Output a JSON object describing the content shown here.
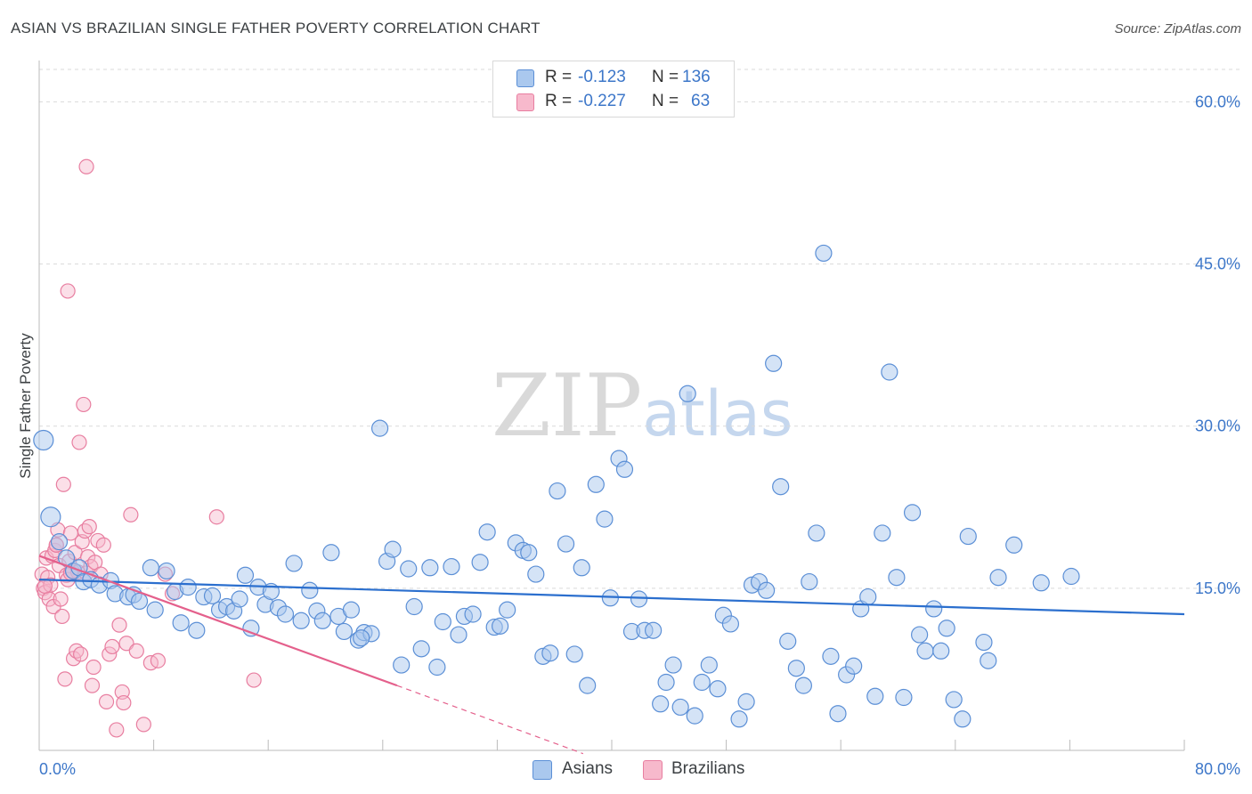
{
  "header": {
    "title": "ASIAN VS BRAZILIAN SINGLE FATHER POVERTY CORRELATION CHART",
    "source": "Source: ZipAtlas.com"
  },
  "watermark": {
    "zip": "ZIP",
    "atlas": "atlas"
  },
  "legend": {
    "asians": {
      "r_label": "R =",
      "r_value": "-0.123",
      "n_label": "N =",
      "n_value": "136"
    },
    "brazilians": {
      "r_label": "R =",
      "r_value": "-0.227",
      "n_label": "N =",
      "n_value": "63"
    }
  },
  "bottom_legend": {
    "asians": "Asians",
    "brazilians": "Brazilians"
  },
  "colors": {
    "asian_fill": "#aac8ee",
    "asian_stroke": "#5b8fd6",
    "asian_line": "#2b6fce",
    "brazil_fill": "#f7b9cc",
    "brazil_stroke": "#e87ea0",
    "brazil_line": "#e4608c",
    "grid": "#d9d9d9",
    "axis_text": "#3d77c9"
  },
  "chart_data": {
    "type": "scatter",
    "title": "ASIAN VS BRAZILIAN SINGLE FATHER POVERTY CORRELATION CHART",
    "xlabel": "",
    "ylabel": "Single Father Poverty",
    "xlim": [
      0,
      80
    ],
    "ylim": [
      0,
      63
    ],
    "x_tick_labels": [
      "0.0%",
      "80.0%"
    ],
    "y_ticks": [
      15,
      30,
      45,
      60
    ],
    "y_tick_labels": [
      "15.0%",
      "30.0%",
      "45.0%",
      "60.0%"
    ],
    "grid": true,
    "legend_position": "top-center",
    "series": [
      {
        "name": "Asians",
        "trend": {
          "x": [
            0,
            80
          ],
          "y": [
            15.8,
            12.6
          ]
        },
        "points": [
          [
            0.3,
            28.7
          ],
          [
            0.8,
            21.6
          ],
          [
            1.4,
            19.3
          ],
          [
            1.9,
            17.8
          ],
          [
            2.4,
            16.6
          ],
          [
            2.8,
            16.9
          ],
          [
            3.1,
            15.6
          ],
          [
            3.6,
            15.8
          ],
          [
            4.2,
            15.3
          ],
          [
            5.0,
            15.7
          ],
          [
            5.3,
            14.5
          ],
          [
            6.2,
            14.2
          ],
          [
            6.6,
            14.4
          ],
          [
            7.0,
            13.8
          ],
          [
            7.8,
            16.9
          ],
          [
            8.1,
            13.0
          ],
          [
            8.9,
            16.6
          ],
          [
            9.5,
            14.7
          ],
          [
            9.9,
            11.8
          ],
          [
            10.4,
            15.1
          ],
          [
            11.0,
            11.1
          ],
          [
            11.5,
            14.2
          ],
          [
            12.1,
            14.3
          ],
          [
            12.6,
            13.0
          ],
          [
            13.1,
            13.3
          ],
          [
            13.6,
            12.9
          ],
          [
            14.0,
            14.0
          ],
          [
            14.4,
            16.2
          ],
          [
            14.8,
            11.3
          ],
          [
            15.3,
            15.1
          ],
          [
            15.8,
            13.5
          ],
          [
            16.2,
            14.7
          ],
          [
            16.7,
            13.2
          ],
          [
            17.2,
            12.6
          ],
          [
            17.8,
            17.3
          ],
          [
            18.3,
            12.0
          ],
          [
            18.9,
            14.8
          ],
          [
            19.4,
            12.9
          ],
          [
            19.8,
            12.0
          ],
          [
            20.4,
            18.3
          ],
          [
            20.9,
            12.4
          ],
          [
            21.3,
            11.0
          ],
          [
            21.8,
            13.0
          ],
          [
            22.3,
            10.2
          ],
          [
            22.7,
            10.9
          ],
          [
            23.2,
            10.8
          ],
          [
            23.8,
            29.8
          ],
          [
            24.3,
            17.5
          ],
          [
            24.7,
            18.6
          ],
          [
            25.3,
            7.9
          ],
          [
            25.8,
            16.8
          ],
          [
            26.2,
            13.3
          ],
          [
            26.7,
            9.4
          ],
          [
            27.3,
            16.9
          ],
          [
            27.8,
            7.7
          ],
          [
            28.2,
            11.9
          ],
          [
            28.8,
            17.0
          ],
          [
            29.3,
            10.7
          ],
          [
            29.7,
            12.4
          ],
          [
            30.3,
            12.6
          ],
          [
            30.8,
            17.4
          ],
          [
            31.3,
            20.2
          ],
          [
            31.8,
            11.4
          ],
          [
            32.2,
            11.5
          ],
          [
            32.7,
            13.0
          ],
          [
            33.3,
            19.2
          ],
          [
            33.8,
            18.5
          ],
          [
            34.2,
            18.3
          ],
          [
            34.7,
            16.3
          ],
          [
            35.2,
            8.7
          ],
          [
            35.7,
            9.0
          ],
          [
            36.2,
            24.0
          ],
          [
            36.8,
            19.1
          ],
          [
            37.4,
            8.9
          ],
          [
            37.9,
            16.9
          ],
          [
            38.3,
            6.0
          ],
          [
            38.9,
            24.6
          ],
          [
            39.5,
            21.4
          ],
          [
            39.9,
            14.1
          ],
          [
            40.5,
            27.0
          ],
          [
            40.9,
            26.0
          ],
          [
            41.4,
            11.0
          ],
          [
            41.9,
            14.0
          ],
          [
            42.3,
            11.1
          ],
          [
            42.9,
            11.1
          ],
          [
            43.4,
            4.3
          ],
          [
            43.8,
            6.3
          ],
          [
            44.3,
            7.9
          ],
          [
            44.8,
            4.0
          ],
          [
            45.3,
            33.0
          ],
          [
            45.8,
            3.2
          ],
          [
            46.3,
            6.3
          ],
          [
            46.8,
            7.9
          ],
          [
            47.4,
            5.7
          ],
          [
            47.8,
            12.5
          ],
          [
            48.3,
            11.7
          ],
          [
            48.9,
            2.9
          ],
          [
            49.4,
            4.5
          ],
          [
            49.8,
            15.3
          ],
          [
            50.3,
            15.6
          ],
          [
            50.8,
            14.8
          ],
          [
            51.3,
            35.8
          ],
          [
            51.8,
            24.4
          ],
          [
            52.3,
            10.1
          ],
          [
            52.9,
            7.6
          ],
          [
            53.4,
            6.0
          ],
          [
            53.8,
            15.6
          ],
          [
            54.3,
            20.1
          ],
          [
            54.8,
            46.0
          ],
          [
            55.3,
            8.7
          ],
          [
            55.8,
            3.4
          ],
          [
            56.4,
            7.0
          ],
          [
            56.9,
            7.8
          ],
          [
            57.4,
            13.1
          ],
          [
            57.9,
            14.2
          ],
          [
            58.4,
            5.0
          ],
          [
            58.9,
            20.1
          ],
          [
            59.4,
            35.0
          ],
          [
            59.9,
            16.0
          ],
          [
            60.4,
            4.9
          ],
          [
            61.0,
            22.0
          ],
          [
            61.5,
            10.7
          ],
          [
            61.9,
            9.2
          ],
          [
            62.5,
            13.1
          ],
          [
            63.0,
            9.2
          ],
          [
            63.4,
            11.3
          ],
          [
            63.9,
            4.7
          ],
          [
            64.5,
            2.9
          ],
          [
            64.9,
            19.8
          ],
          [
            66.0,
            10.0
          ],
          [
            66.3,
            8.3
          ],
          [
            67.0,
            16.0
          ],
          [
            68.1,
            19.0
          ],
          [
            70.0,
            15.5
          ],
          [
            72.1,
            16.1
          ],
          [
            22.5,
            10.4
          ]
        ]
      },
      {
        "name": "Brazilians",
        "trend": {
          "x": [
            0,
            25
          ],
          "y": [
            18.0,
            6.0
          ]
        },
        "trend_dashed": {
          "x": [
            25,
            38
          ],
          "y": [
            6.0,
            -0.3
          ]
        },
        "points": [
          [
            0.2,
            16.3
          ],
          [
            0.3,
            15.0
          ],
          [
            0.4,
            14.6
          ],
          [
            0.5,
            17.8
          ],
          [
            0.6,
            16.0
          ],
          [
            0.7,
            14.0
          ],
          [
            0.8,
            15.3
          ],
          [
            0.9,
            18.0
          ],
          [
            1.0,
            13.3
          ],
          [
            1.1,
            18.5
          ],
          [
            1.2,
            19.0
          ],
          [
            1.3,
            20.4
          ],
          [
            1.4,
            17.1
          ],
          [
            1.5,
            14.0
          ],
          [
            1.6,
            12.4
          ],
          [
            1.7,
            24.6
          ],
          [
            1.8,
            6.6
          ],
          [
            1.9,
            16.2
          ],
          [
            2.0,
            15.8
          ],
          [
            2.1,
            17.5
          ],
          [
            2.2,
            20.1
          ],
          [
            2.3,
            16.6
          ],
          [
            2.4,
            8.5
          ],
          [
            2.5,
            18.3
          ],
          [
            2.6,
            9.2
          ],
          [
            2.7,
            16.5
          ],
          [
            2.8,
            28.5
          ],
          [
            2.9,
            8.9
          ],
          [
            3.0,
            19.3
          ],
          [
            3.1,
            32.0
          ],
          [
            3.2,
            20.3
          ],
          [
            3.3,
            16.4
          ],
          [
            3.4,
            17.9
          ],
          [
            3.5,
            20.7
          ],
          [
            3.6,
            17.0
          ],
          [
            3.7,
            6.0
          ],
          [
            3.8,
            7.7
          ],
          [
            3.9,
            17.4
          ],
          [
            4.1,
            19.4
          ],
          [
            4.3,
            16.3
          ],
          [
            4.5,
            19.0
          ],
          [
            4.7,
            4.5
          ],
          [
            4.9,
            8.9
          ],
          [
            5.1,
            9.6
          ],
          [
            5.4,
            1.9
          ],
          [
            5.6,
            11.6
          ],
          [
            5.8,
            5.4
          ],
          [
            5.9,
            4.4
          ],
          [
            6.1,
            9.9
          ],
          [
            6.4,
            21.8
          ],
          [
            6.8,
            9.2
          ],
          [
            7.3,
            2.4
          ],
          [
            7.8,
            8.1
          ],
          [
            8.3,
            8.3
          ],
          [
            8.8,
            16.3
          ],
          [
            9.3,
            14.5
          ],
          [
            3.3,
            54.0
          ],
          [
            2.0,
            42.5
          ],
          [
            12.4,
            21.6
          ],
          [
            15.0,
            6.5
          ],
          [
            1.2,
            19.0
          ],
          [
            0.4,
            15.2
          ],
          [
            2.2,
            16.4
          ]
        ]
      }
    ]
  }
}
